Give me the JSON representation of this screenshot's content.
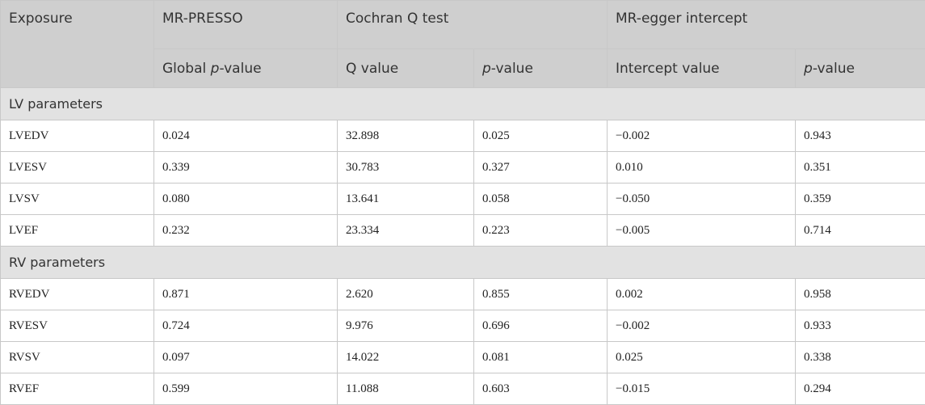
{
  "headers": {
    "exposure": "Exposure",
    "mr_presso": "MR-PRESSO",
    "cochran": "Cochran Q test",
    "egger": "MR-egger intercept",
    "global_p_prefix": "Global ",
    "p_italic": "p",
    "value_suffix": "-value",
    "q_value": "Q value",
    "intercept_value": "Intercept value"
  },
  "sections": {
    "lv": "LV parameters",
    "rv": "RV parameters"
  },
  "rows": {
    "lvedv": {
      "name": "LVEDV",
      "global_p": "0.024",
      "q": "32.898",
      "q_p": "0.025",
      "intercept": "−0.002",
      "egger_p": "0.943"
    },
    "lvesv": {
      "name": "LVESV",
      "global_p": "0.339",
      "q": "30.783",
      "q_p": "0.327",
      "intercept": "0.010",
      "egger_p": "0.351"
    },
    "lvsv": {
      "name": "LVSV",
      "global_p": "0.080",
      "q": "13.641",
      "q_p": "0.058",
      "intercept": "−0.050",
      "egger_p": "0.359"
    },
    "lvef": {
      "name": "LVEF",
      "global_p": "0.232",
      "q": "23.334",
      "q_p": "0.223",
      "intercept": "−0.005",
      "egger_p": "0.714"
    },
    "rvedv": {
      "name": "RVEDV",
      "global_p": "0.871",
      "q": "2.620",
      "q_p": "0.855",
      "intercept": "0.002",
      "egger_p": "0.958"
    },
    "rvesv": {
      "name": "RVESV",
      "global_p": "0.724",
      "q": "9.976",
      "q_p": "0.696",
      "intercept": "−0.002",
      "egger_p": "0.933"
    },
    "rvsv": {
      "name": "RVSV",
      "global_p": "0.097",
      "q": "14.022",
      "q_p": "0.081",
      "intercept": "0.025",
      "egger_p": "0.338"
    },
    "rvef": {
      "name": "RVEF",
      "global_p": "0.599",
      "q": "11.088",
      "q_p": "0.603",
      "intercept": "−0.015",
      "egger_p": "0.294"
    }
  },
  "colors": {
    "header_bg": "#cfcfcf",
    "section_bg": "#e2e2e2",
    "border": "#c8c8c8"
  }
}
